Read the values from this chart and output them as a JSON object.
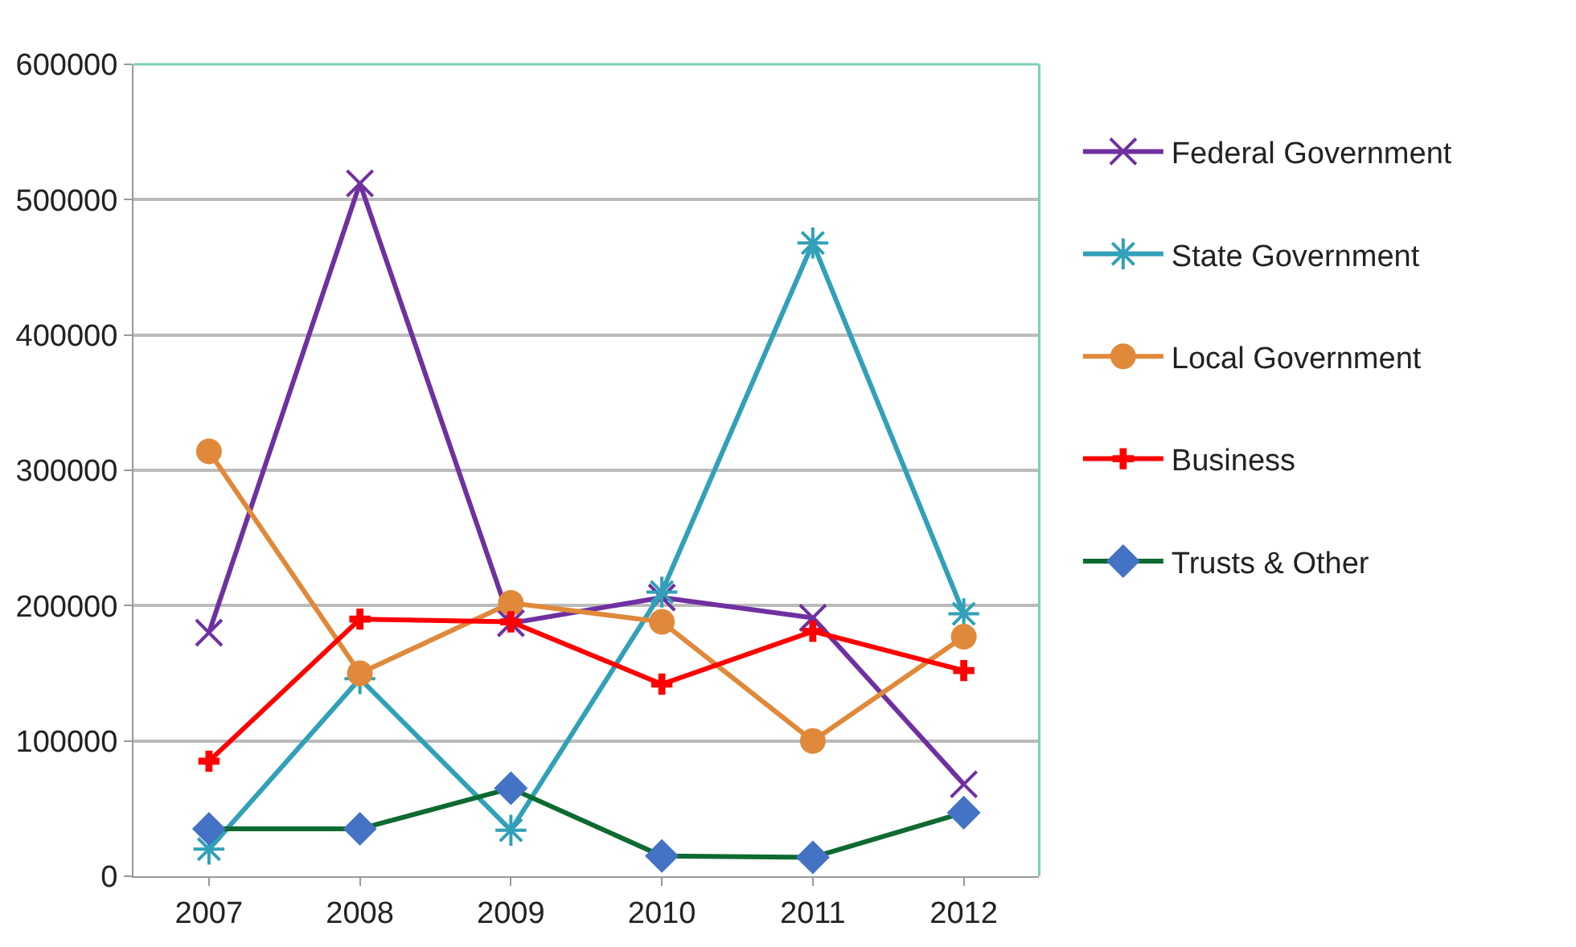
{
  "chart_data": {
    "type": "line",
    "categories": [
      "2007",
      "2008",
      "2009",
      "2010",
      "2011",
      "2012"
    ],
    "series": [
      {
        "name": "Federal Government",
        "color": "#7030a0",
        "marker": "x",
        "values": [
          180000,
          512000,
          187000,
          206000,
          191000,
          68000
        ]
      },
      {
        "name": "State Government",
        "color": "#31a0b8",
        "marker": "cross",
        "values": [
          20000,
          146000,
          34000,
          210000,
          468000,
          194000
        ]
      },
      {
        "name": "Local Government",
        "color": "#e0893a",
        "marker": "circle",
        "values": [
          314000,
          150000,
          202000,
          188000,
          100000,
          177000
        ]
      },
      {
        "name": "Business",
        "color": "#ff0000",
        "marker": "cross",
        "values": [
          85000,
          190000,
          188000,
          142000,
          181000,
          152000
        ]
      },
      {
        "name": "Trusts & Other",
        "color": "#0e6a30",
        "marker": "diamond",
        "values": [
          35000,
          35000,
          65000,
          15000,
          14000,
          47000
        ]
      }
    ],
    "ylim": [
      0,
      600000
    ],
    "yticks": [
      0,
      100000,
      200000,
      300000,
      400000,
      500000,
      600000
    ],
    "grid": "y",
    "legend": "right"
  }
}
